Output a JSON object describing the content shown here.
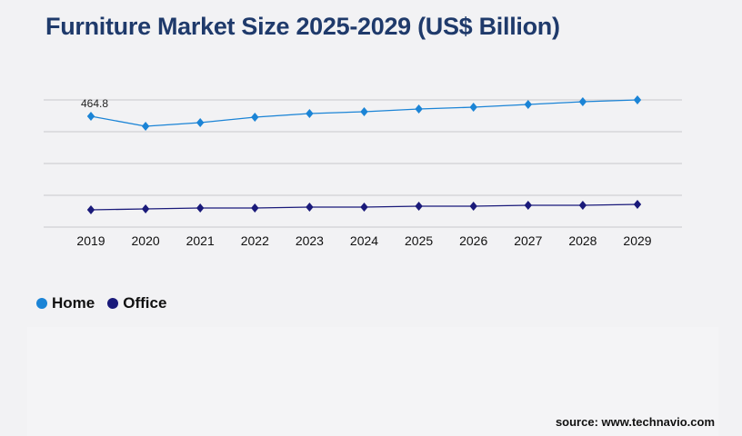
{
  "chart_data": {
    "type": "line",
    "title": "Furniture Market Size 2025-2029 (US$ Billion)",
    "categories": [
      "2019",
      "2020",
      "2021",
      "2022",
      "2023",
      "2024",
      "2025",
      "2026",
      "2027",
      "2028",
      "2029"
    ],
    "series": [
      {
        "name": "Home",
        "color": "#1b84d6",
        "values": [
          464.8,
          422.9,
          438.2,
          461.0,
          476.3,
          483.9,
          495.3,
          502.9,
          514.4,
          525.8,
          533.4
        ]
      },
      {
        "name": "Office",
        "color": "#1a1a7a",
        "values": [
          72.4,
          76.2,
          80.0,
          80.0,
          83.8,
          83.8,
          87.6,
          87.6,
          91.4,
          91.4,
          95.3
        ]
      }
    ],
    "data_labels": [
      {
        "series": "Home",
        "category": "2019",
        "text": "464.8"
      }
    ],
    "ylim": [
      0,
      533.4
    ],
    "gridlines": 5,
    "grid": true,
    "marker": "diamond",
    "legend_placement": "bottom-left"
  },
  "source": "source: www.technavio.com"
}
